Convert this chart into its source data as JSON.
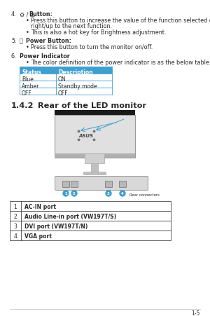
{
  "bg_color": "#ffffff",
  "text_color": "#2a2a2a",
  "section4_num": "4.",
  "section4_icon": "⚙ / ⚠",
  "section4_title": " Button:",
  "section4_bullet1a": "Press this button to increase the value of the function selected or move",
  "section4_bullet1b": "right/up to the next function.",
  "section4_bullet2": "This is also a hot key for Brightness adjustment.",
  "section5_num": "5.",
  "section5_icon": "⏻",
  "section5_title": " Power Button:",
  "section5_bullet1": "Press this button to turn the monitor on/off.",
  "section6_num": "6.",
  "section6_title": "Power Indicator",
  "section6_bullet1": "The color definition of the power indicator is as the below table.",
  "table_header": [
    "Status",
    "Description"
  ],
  "table_rows": [
    [
      "Blue",
      "ON"
    ],
    [
      "Amber",
      "Standby mode"
    ],
    [
      "OFF",
      "OFF"
    ]
  ],
  "table_header_bg": "#3fa0d0",
  "table_header_text": "#ffffff",
  "table_row_bg": "#ffffff",
  "table_border": "#3fa0d0",
  "section_142": "1.4.2",
  "section_142_title": "Rear of the LED monitor",
  "connector_rows": [
    [
      "1",
      "AC-IN port"
    ],
    [
      "2",
      "Audio Line-in port (VW197T/S)"
    ],
    [
      "3",
      "DVI port (VW197T/N)"
    ],
    [
      "4",
      "VGA port"
    ]
  ],
  "footer_text": "1-5",
  "bullet_char": "•",
  "circle_color": "#3fa0d0",
  "arrow_color": "#3fa0d0",
  "monitor_dark": "#1a1a1a",
  "monitor_body": "#e0e0e0",
  "monitor_border": "#999999",
  "stand_color": "#c0c0c0",
  "conn_strip_color": "#cccccc"
}
